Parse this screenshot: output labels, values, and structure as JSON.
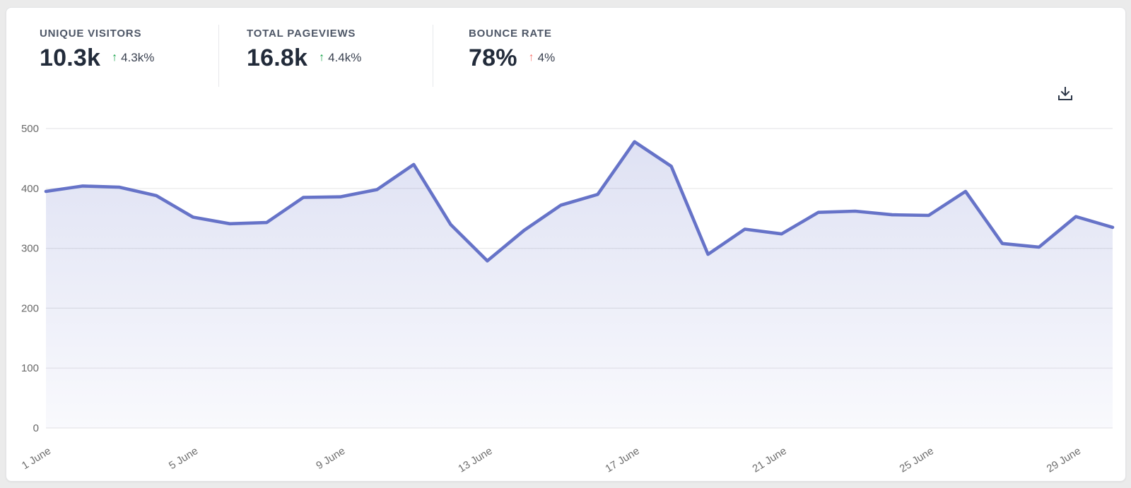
{
  "stats": [
    {
      "label": "UNIQUE VISITORS",
      "value": "10.3k",
      "arrow": "↑",
      "delta": "4.3k%",
      "direction": "up",
      "delta_color": "#17a34a"
    },
    {
      "label": "TOTAL PAGEVIEWS",
      "value": "16.8k",
      "arrow": "↑",
      "delta": "4.4k%",
      "direction": "up",
      "delta_color": "#17a34a"
    },
    {
      "label": "BOUNCE RATE",
      "value": "78%",
      "arrow": "↑",
      "delta": "4%",
      "direction": "up",
      "delta_color": "#f87b75"
    }
  ],
  "toolbar": {
    "download_icon": "download-icon"
  },
  "chart_data": {
    "type": "area",
    "title": "",
    "xlabel": "",
    "ylabel": "",
    "x_days": [
      1,
      2,
      3,
      4,
      5,
      6,
      7,
      8,
      9,
      10,
      11,
      12,
      13,
      14,
      15,
      16,
      17,
      18,
      19,
      20,
      21,
      22,
      23,
      24,
      25,
      26,
      27,
      28,
      29,
      30
    ],
    "values": [
      395,
      404,
      402,
      388,
      352,
      341,
      343,
      385,
      386,
      398,
      440,
      340,
      279,
      330,
      372,
      390,
      478,
      437,
      290,
      332,
      324,
      360,
      362,
      356,
      355,
      395,
      308,
      302,
      353,
      335
    ],
    "x_tick_labels": [
      "1 June",
      "5 June",
      "9 June",
      "13 June",
      "17 June",
      "21 June",
      "25 June",
      "29 June"
    ],
    "x_tick_indices": [
      0,
      4,
      8,
      12,
      16,
      20,
      24,
      28
    ],
    "y_ticks": [
      0,
      100,
      200,
      300,
      400,
      500
    ],
    "ylim": [
      0,
      500
    ],
    "grid": true,
    "legend": "none",
    "line_color": "#6673c8",
    "area_color": "#6673c8",
    "gridline_color": "#e8e8e9",
    "axis_text_color": "#686868"
  }
}
